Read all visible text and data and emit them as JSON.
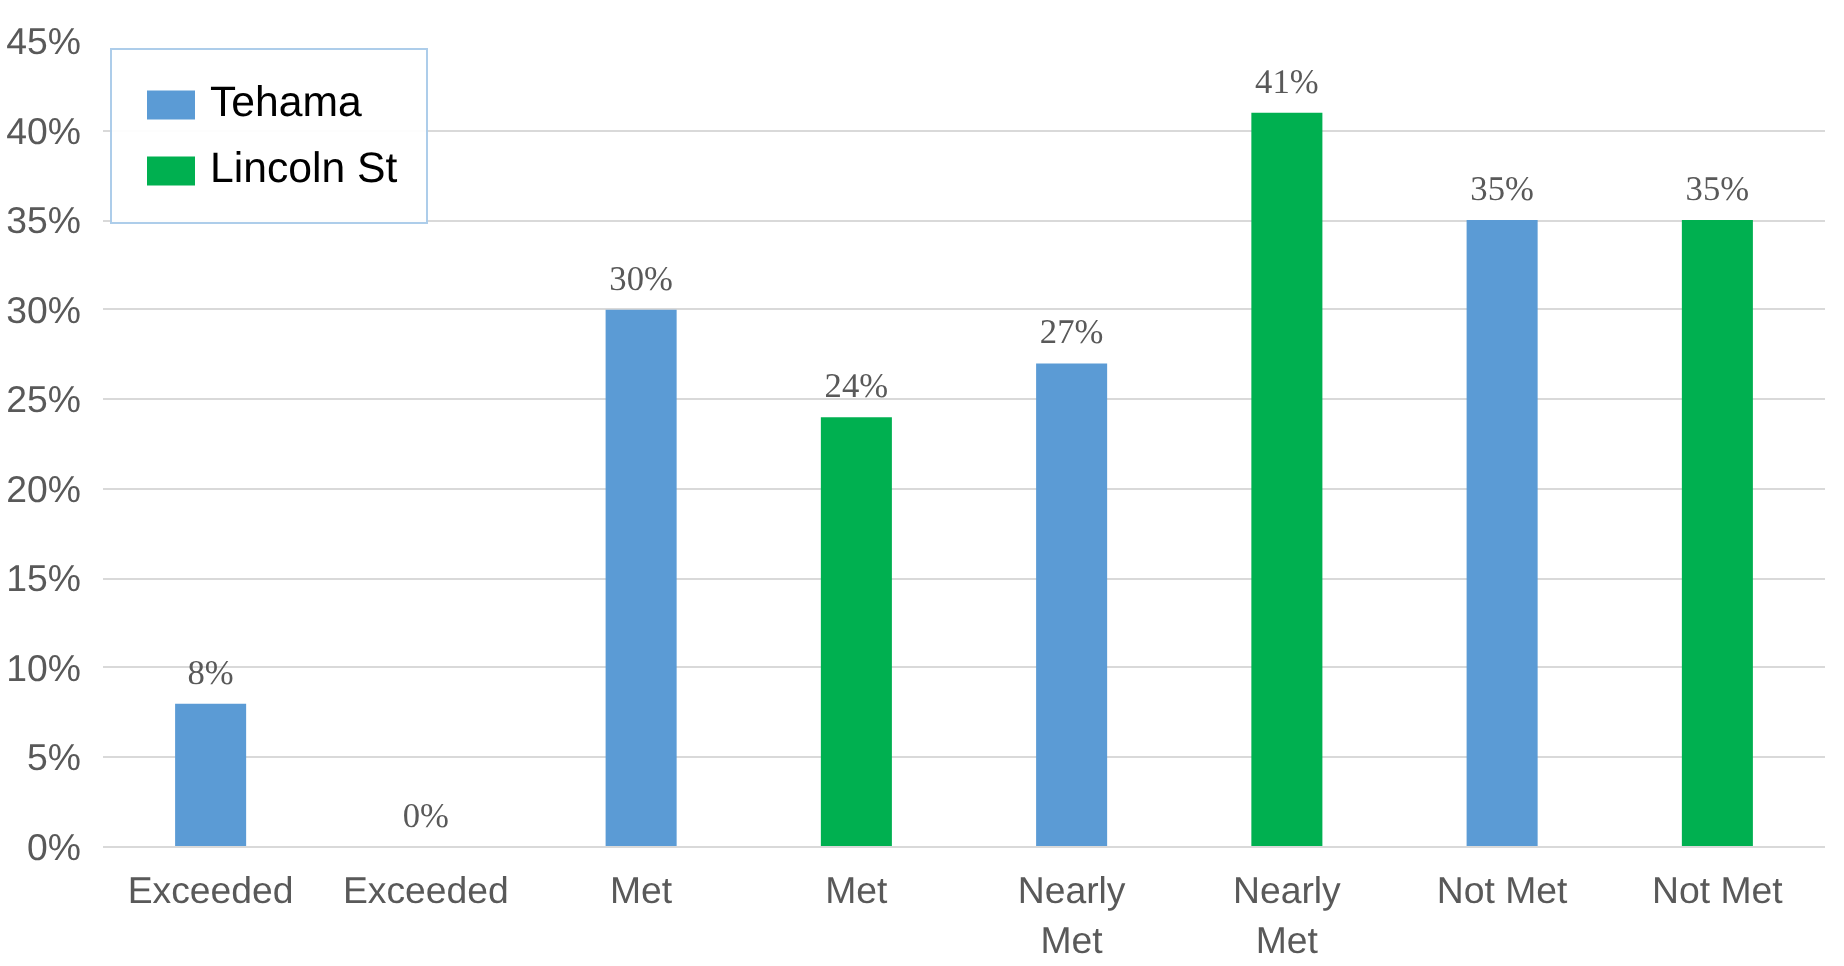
{
  "chart_data": {
    "type": "bar",
    "categories": [
      "Exceeded",
      "Exceeded",
      "Met",
      "Met",
      "Nearly Met",
      "Nearly Met",
      "Not Met",
      "Not Met"
    ],
    "series": [
      {
        "name": "Tehama",
        "color": "#5b9bd5",
        "values": [
          8,
          null,
          30,
          null,
          27,
          null,
          35,
          null
        ],
        "value_labels": [
          "8%",
          null,
          "30%",
          null,
          "27%",
          null,
          "35%",
          null
        ]
      },
      {
        "name": "Lincoln St",
        "color": "#00b050",
        "values": [
          null,
          0,
          null,
          24,
          null,
          41,
          null,
          35
        ],
        "value_labels": [
          null,
          "0%",
          null,
          "24%",
          null,
          "41%",
          null,
          "35%"
        ]
      }
    ],
    "ylim": [
      0,
      45
    ],
    "yticks": [
      {
        "value": 0,
        "label": "0%"
      },
      {
        "value": 5,
        "label": "5%"
      },
      {
        "value": 10,
        "label": "10%"
      },
      {
        "value": 15,
        "label": "15%"
      },
      {
        "value": 20,
        "label": "20%"
      },
      {
        "value": 25,
        "label": "25%"
      },
      {
        "value": 30,
        "label": "30%"
      },
      {
        "value": 35,
        "label": "35%"
      },
      {
        "value": 40,
        "label": "40%"
      },
      {
        "value": 45,
        "label": "45%"
      }
    ],
    "grid": "y",
    "legend": "top left"
  }
}
